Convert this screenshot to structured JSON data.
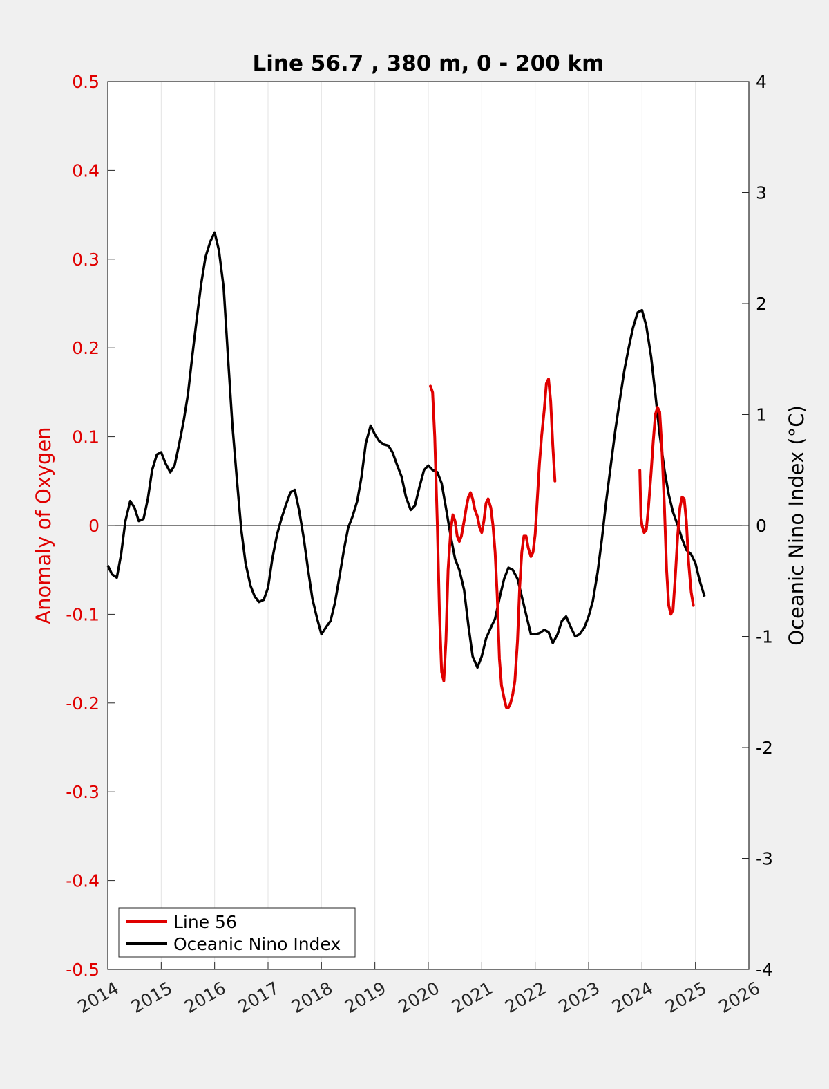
{
  "chart_data": {
    "type": "line",
    "title": "Line 56.7 , 380 m, 0 - 200 km",
    "ylabel_left": "Anomaly of Oxygen",
    "ylabel_right": "Oceanic Nino Index (°C)",
    "xlim": [
      2014,
      2026
    ],
    "ylim_left": [
      -0.5,
      0.5
    ],
    "ylim_right": [
      -4,
      4
    ],
    "x_ticks": [
      "2014",
      "2015",
      "2016",
      "2017",
      "2018",
      "2019",
      "2020",
      "2021",
      "2022",
      "2023",
      "2024",
      "2025",
      "2026"
    ],
    "y_left_ticks": [
      "0.5",
      "0.4",
      "0.3",
      "0.2",
      "0.1",
      "0",
      "-0.1",
      "-0.2",
      "-0.3",
      "-0.4",
      "-0.5"
    ],
    "y_right_ticks": [
      "4",
      "3",
      "2",
      "1",
      "0",
      "-1",
      "-2",
      "-3",
      "-4"
    ],
    "grid": "vertical",
    "legend_position": "bottom-left",
    "colors": {
      "line56": "#e00000",
      "oni": "#000000"
    },
    "series": [
      {
        "name": "Line 56",
        "axis": "left",
        "segments": [
          [
            [
              2020.04,
              0.157
            ],
            [
              2020.08,
              0.15
            ],
            [
              2020.12,
              0.1
            ],
            [
              2020.17,
              0.0
            ],
            [
              2020.21,
              -0.1
            ],
            [
              2020.25,
              -0.165
            ],
            [
              2020.29,
              -0.175
            ],
            [
              2020.33,
              -0.13
            ],
            [
              2020.37,
              -0.05
            ],
            [
              2020.42,
              -0.005
            ],
            [
              2020.46,
              0.012
            ],
            [
              2020.5,
              0.005
            ],
            [
              2020.54,
              -0.012
            ],
            [
              2020.58,
              -0.018
            ],
            [
              2020.62,
              -0.012
            ],
            [
              2020.67,
              0.005
            ],
            [
              2020.71,
              0.02
            ],
            [
              2020.75,
              0.032
            ],
            [
              2020.79,
              0.037
            ],
            [
              2020.83,
              0.03
            ],
            [
              2020.87,
              0.018
            ],
            [
              2020.92,
              0.01
            ],
            [
              2020.96,
              -0.002
            ],
            [
              2021.0,
              -0.008
            ],
            [
              2021.04,
              0.005
            ],
            [
              2021.08,
              0.025
            ],
            [
              2021.12,
              0.03
            ],
            [
              2021.17,
              0.02
            ],
            [
              2021.21,
              0.0
            ],
            [
              2021.25,
              -0.03
            ],
            [
              2021.29,
              -0.08
            ],
            [
              2021.33,
              -0.15
            ],
            [
              2021.37,
              -0.18
            ],
            [
              2021.42,
              -0.195
            ],
            [
              2021.46,
              -0.205
            ],
            [
              2021.5,
              -0.205
            ],
            [
              2021.54,
              -0.2
            ],
            [
              2021.58,
              -0.19
            ],
            [
              2021.62,
              -0.175
            ],
            [
              2021.67,
              -0.13
            ],
            [
              2021.71,
              -0.07
            ],
            [
              2021.75,
              -0.03
            ],
            [
              2021.79,
              -0.012
            ],
            [
              2021.83,
              -0.012
            ],
            [
              2021.87,
              -0.025
            ],
            [
              2021.92,
              -0.035
            ],
            [
              2021.96,
              -0.03
            ],
            [
              2022.0,
              -0.01
            ],
            [
              2022.04,
              0.03
            ],
            [
              2022.08,
              0.07
            ],
            [
              2022.12,
              0.1
            ],
            [
              2022.17,
              0.13
            ],
            [
              2022.21,
              0.16
            ],
            [
              2022.25,
              0.165
            ],
            [
              2022.29,
              0.14
            ],
            [
              2022.33,
              0.09
            ],
            [
              2022.37,
              0.05
            ]
          ],
          [
            [
              2023.96,
              0.062
            ],
            [
              2023.98,
              0.01
            ],
            [
              2024.0,
              0.0
            ],
            [
              2024.04,
              -0.008
            ],
            [
              2024.08,
              -0.005
            ],
            [
              2024.12,
              0.02
            ],
            [
              2024.17,
              0.06
            ],
            [
              2024.21,
              0.095
            ],
            [
              2024.25,
              0.125
            ],
            [
              2024.29,
              0.133
            ],
            [
              2024.33,
              0.128
            ],
            [
              2024.37,
              0.09
            ],
            [
              2024.42,
              0.02
            ],
            [
              2024.46,
              -0.05
            ],
            [
              2024.5,
              -0.09
            ],
            [
              2024.54,
              -0.1
            ],
            [
              2024.58,
              -0.095
            ],
            [
              2024.62,
              -0.06
            ],
            [
              2024.67,
              -0.01
            ],
            [
              2024.71,
              0.02
            ],
            [
              2024.75,
              0.032
            ],
            [
              2024.79,
              0.03
            ],
            [
              2024.83,
              0.005
            ],
            [
              2024.87,
              -0.04
            ],
            [
              2024.92,
              -0.075
            ],
            [
              2024.96,
              -0.09
            ]
          ]
        ]
      },
      {
        "name": "Oceanic Nino Index",
        "axis": "right",
        "points": [
          [
            2014.0,
            -0.36
          ],
          [
            2014.08,
            -0.44
          ],
          [
            2014.17,
            -0.47
          ],
          [
            2014.25,
            -0.26
          ],
          [
            2014.33,
            0.04
          ],
          [
            2014.42,
            0.22
          ],
          [
            2014.5,
            0.16
          ],
          [
            2014.58,
            0.04
          ],
          [
            2014.67,
            0.06
          ],
          [
            2014.75,
            0.24
          ],
          [
            2014.83,
            0.5
          ],
          [
            2014.92,
            0.64
          ],
          [
            2015.0,
            0.66
          ],
          [
            2015.08,
            0.56
          ],
          [
            2015.17,
            0.48
          ],
          [
            2015.25,
            0.54
          ],
          [
            2015.33,
            0.72
          ],
          [
            2015.42,
            0.94
          ],
          [
            2015.5,
            1.18
          ],
          [
            2015.58,
            1.52
          ],
          [
            2015.67,
            1.88
          ],
          [
            2015.75,
            2.18
          ],
          [
            2015.83,
            2.42
          ],
          [
            2015.92,
            2.56
          ],
          [
            2016.0,
            2.64
          ],
          [
            2016.08,
            2.48
          ],
          [
            2016.17,
            2.14
          ],
          [
            2016.25,
            1.52
          ],
          [
            2016.33,
            0.92
          ],
          [
            2016.42,
            0.4
          ],
          [
            2016.5,
            -0.04
          ],
          [
            2016.58,
            -0.34
          ],
          [
            2016.67,
            -0.54
          ],
          [
            2016.75,
            -0.64
          ],
          [
            2016.83,
            -0.69
          ],
          [
            2016.92,
            -0.67
          ],
          [
            2017.0,
            -0.56
          ],
          [
            2017.08,
            -0.3
          ],
          [
            2017.17,
            -0.08
          ],
          [
            2017.25,
            0.06
          ],
          [
            2017.33,
            0.18
          ],
          [
            2017.42,
            0.3
          ],
          [
            2017.5,
            0.32
          ],
          [
            2017.58,
            0.14
          ],
          [
            2017.67,
            -0.12
          ],
          [
            2017.75,
            -0.4
          ],
          [
            2017.83,
            -0.66
          ],
          [
            2017.92,
            -0.84
          ],
          [
            2018.0,
            -0.98
          ],
          [
            2018.08,
            -0.92
          ],
          [
            2018.17,
            -0.86
          ],
          [
            2018.25,
            -0.7
          ],
          [
            2018.33,
            -0.48
          ],
          [
            2018.42,
            -0.22
          ],
          [
            2018.5,
            -0.02
          ],
          [
            2018.58,
            0.08
          ],
          [
            2018.67,
            0.22
          ],
          [
            2018.75,
            0.44
          ],
          [
            2018.83,
            0.74
          ],
          [
            2018.92,
            0.9
          ],
          [
            2019.0,
            0.82
          ],
          [
            2019.08,
            0.76
          ],
          [
            2019.17,
            0.73
          ],
          [
            2019.25,
            0.72
          ],
          [
            2019.33,
            0.66
          ],
          [
            2019.42,
            0.54
          ],
          [
            2019.5,
            0.44
          ],
          [
            2019.58,
            0.26
          ],
          [
            2019.67,
            0.14
          ],
          [
            2019.75,
            0.18
          ],
          [
            2019.83,
            0.34
          ],
          [
            2019.92,
            0.5
          ],
          [
            2020.0,
            0.54
          ],
          [
            2020.08,
            0.5
          ],
          [
            2020.17,
            0.48
          ],
          [
            2020.25,
            0.38
          ],
          [
            2020.33,
            0.16
          ],
          [
            2020.42,
            -0.1
          ],
          [
            2020.5,
            -0.3
          ],
          [
            2020.58,
            -0.4
          ],
          [
            2020.67,
            -0.58
          ],
          [
            2020.75,
            -0.9
          ],
          [
            2020.83,
            -1.18
          ],
          [
            2020.92,
            -1.28
          ],
          [
            2021.0,
            -1.18
          ],
          [
            2021.08,
            -1.02
          ],
          [
            2021.17,
            -0.92
          ],
          [
            2021.25,
            -0.84
          ],
          [
            2021.33,
            -0.66
          ],
          [
            2021.42,
            -0.48
          ],
          [
            2021.5,
            -0.38
          ],
          [
            2021.58,
            -0.4
          ],
          [
            2021.67,
            -0.48
          ],
          [
            2021.75,
            -0.64
          ],
          [
            2021.83,
            -0.8
          ],
          [
            2021.92,
            -0.98
          ],
          [
            2022.0,
            -0.98
          ],
          [
            2022.08,
            -0.97
          ],
          [
            2022.17,
            -0.94
          ],
          [
            2022.25,
            -0.96
          ],
          [
            2022.33,
            -1.06
          ],
          [
            2022.42,
            -0.98
          ],
          [
            2022.5,
            -0.86
          ],
          [
            2022.58,
            -0.82
          ],
          [
            2022.67,
            -0.92
          ],
          [
            2022.75,
            -1.0
          ],
          [
            2022.83,
            -0.98
          ],
          [
            2022.92,
            -0.92
          ],
          [
            2023.0,
            -0.82
          ],
          [
            2023.08,
            -0.68
          ],
          [
            2023.17,
            -0.42
          ],
          [
            2023.25,
            -0.12
          ],
          [
            2023.33,
            0.22
          ],
          [
            2023.42,
            0.56
          ],
          [
            2023.5,
            0.86
          ],
          [
            2023.58,
            1.12
          ],
          [
            2023.67,
            1.4
          ],
          [
            2023.75,
            1.6
          ],
          [
            2023.83,
            1.78
          ],
          [
            2023.92,
            1.92
          ],
          [
            2024.0,
            1.94
          ],
          [
            2024.08,
            1.8
          ],
          [
            2024.17,
            1.52
          ],
          [
            2024.25,
            1.18
          ],
          [
            2024.33,
            0.82
          ],
          [
            2024.42,
            0.5
          ],
          [
            2024.5,
            0.28
          ],
          [
            2024.58,
            0.12
          ],
          [
            2024.67,
            0.0
          ],
          [
            2024.75,
            -0.12
          ],
          [
            2024.83,
            -0.22
          ],
          [
            2024.92,
            -0.26
          ],
          [
            2025.0,
            -0.34
          ],
          [
            2025.08,
            -0.5
          ],
          [
            2025.17,
            -0.64
          ]
        ]
      }
    ]
  }
}
